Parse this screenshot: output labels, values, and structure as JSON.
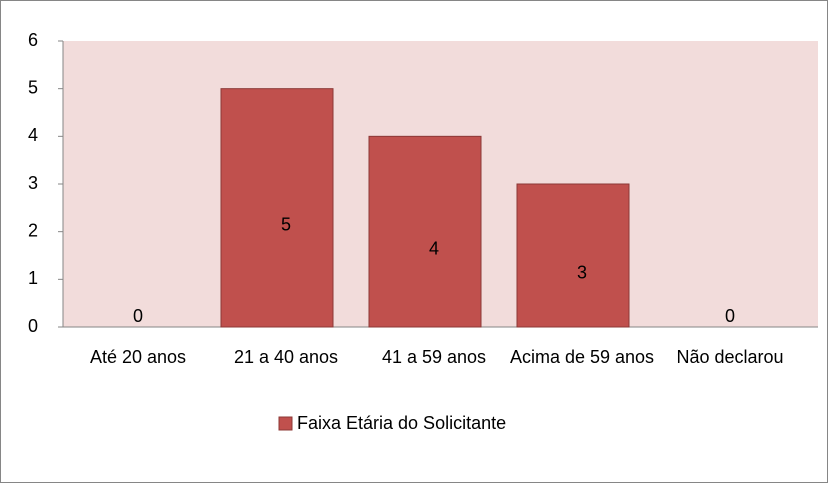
{
  "chart_data": {
    "type": "bar",
    "categories": [
      "Até 20 anos",
      "21 a 40 anos",
      "41 a 59 anos",
      "Acima de 59 anos",
      "Não declarou"
    ],
    "series": [
      {
        "name": "Faixa Etária do Solicitante",
        "color": "#c0504d",
        "values": [
          0,
          5,
          4,
          3,
          0
        ]
      }
    ],
    "ylim": [
      0,
      6
    ],
    "yticks": [
      0,
      1,
      2,
      3,
      4,
      5,
      6
    ],
    "legend": "bottom",
    "plot_background": "#f2dcdb"
  }
}
